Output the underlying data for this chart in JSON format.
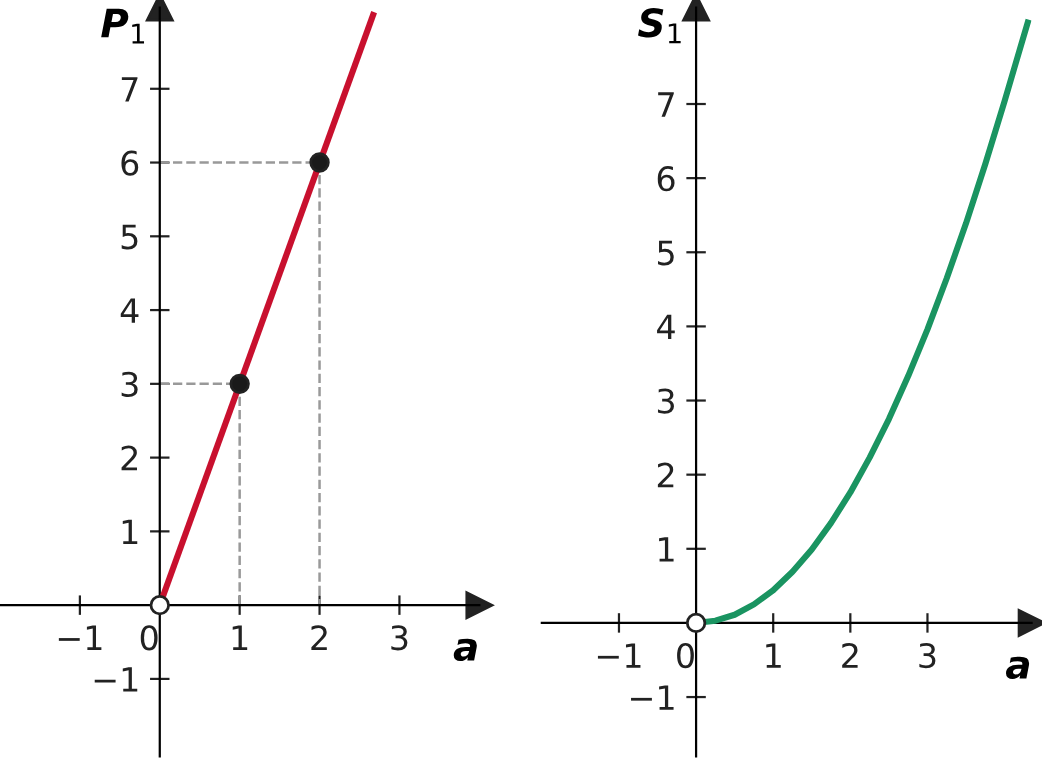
{
  "chart_data": [
    {
      "type": "line",
      "xlabel": "a",
      "ylabel": "P$_{1}$",
      "xlim": [
        -2,
        4
      ],
      "ylim": [
        -2.05,
        8.1
      ],
      "xticks": [
        -1,
        0,
        1,
        2,
        3
      ],
      "yticks": [
        -1,
        1,
        2,
        3,
        4,
        5,
        6,
        7
      ],
      "grid": false,
      "legend": false,
      "series": [
        {
          "color": "#c8102e",
          "x": [
            0,
            2.67
          ],
          "values": [
            0,
            8
          ]
        },
        {
          "color": "#999999",
          "line_style": "dashed",
          "x": [
            0,
            1,
            1
          ],
          "values": [
            3,
            3,
            0
          ]
        },
        {
          "color": "#999999",
          "line_style": "dashed",
          "x": [
            0,
            2,
            2
          ],
          "values": [
            6,
            6,
            0
          ]
        },
        {
          "type": "scatter",
          "color": "#1a1a1a",
          "x": [
            1,
            2
          ],
          "values": [
            3,
            6
          ],
          "marker": "circle"
        },
        {
          "type": "scatter",
          "color": "#ffffff",
          "x": [
            0
          ],
          "values": [
            0
          ],
          "marker": "circle"
        }
      ]
    },
    {
      "type": "line",
      "xlabel": "a",
      "ylabel": "S$_{1}$",
      "xlim": [
        -2,
        4.35
      ],
      "ylim": [
        -1.8,
        8.3
      ],
      "xticks": [
        -1,
        0,
        1,
        2,
        3
      ],
      "yticks": [
        -1,
        1,
        2,
        3,
        4,
        5,
        6,
        7
      ],
      "grid": false,
      "legend": false,
      "series": [
        {
          "color": "#1a9461",
          "x": [
            0,
            0.25,
            0.5,
            0.75,
            1,
            1.25,
            1.5,
            1.75,
            2,
            2.25,
            2.5,
            2.75,
            3,
            3.25,
            3.5,
            3.75,
            4,
            4.3
          ],
          "values": [
            0,
            0.03,
            0.11,
            0.25,
            0.44,
            0.69,
            0.99,
            1.35,
            1.76,
            2.23,
            2.75,
            3.33,
            3.96,
            4.65,
            5.39,
            6.19,
            7.04,
            8.1
          ]
        },
        {
          "type": "scatter",
          "color": "#ffffff",
          "x": [
            0
          ],
          "values": [
            0
          ],
          "marker": "circle"
        }
      ]
    }
  ]
}
